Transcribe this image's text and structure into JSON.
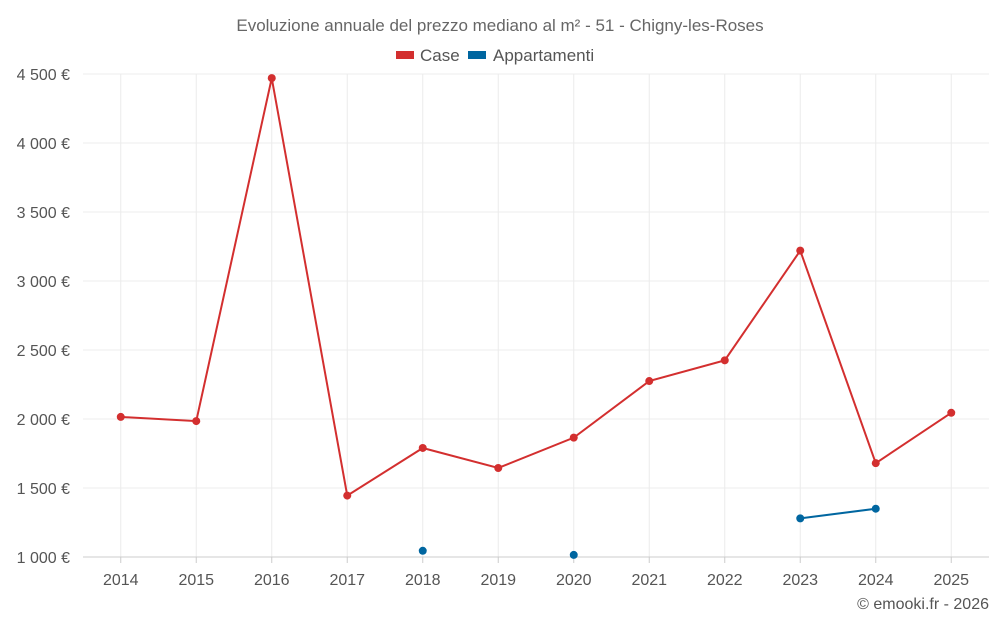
{
  "chart_data": {
    "type": "line",
    "title": "Evoluzione annuale del prezzo mediano al m² - 51 - Chigny-les-Roses",
    "categories": [
      "2014",
      "2015",
      "2016",
      "2017",
      "2018",
      "2019",
      "2020",
      "2021",
      "2022",
      "2023",
      "2024",
      "2025"
    ],
    "series": [
      {
        "name": "Case",
        "color": "#d32f2f",
        "values": [
          2015,
          1985,
          4470,
          1445,
          1790,
          1645,
          1865,
          2275,
          2425,
          3220,
          1680,
          2045
        ]
      },
      {
        "name": "Appartamenti",
        "color": "#0066a0",
        "values": [
          null,
          null,
          null,
          null,
          1045,
          null,
          1015,
          null,
          null,
          1280,
          1350,
          null
        ]
      }
    ],
    "ylim": [
      1000,
      4500
    ],
    "yticks": [
      1000,
      1500,
      2000,
      2500,
      3000,
      3500,
      4000,
      4500
    ],
    "ytick_labels": [
      "1 000 €",
      "1 500 €",
      "2 000 €",
      "2 500 €",
      "3 000 €",
      "3 500 €",
      "4 000 €",
      "4 500 €"
    ],
    "xlabel": "",
    "ylabel": "",
    "legend_position": "top-center",
    "grid": true
  },
  "credit": "© emooki.fr - 2026"
}
